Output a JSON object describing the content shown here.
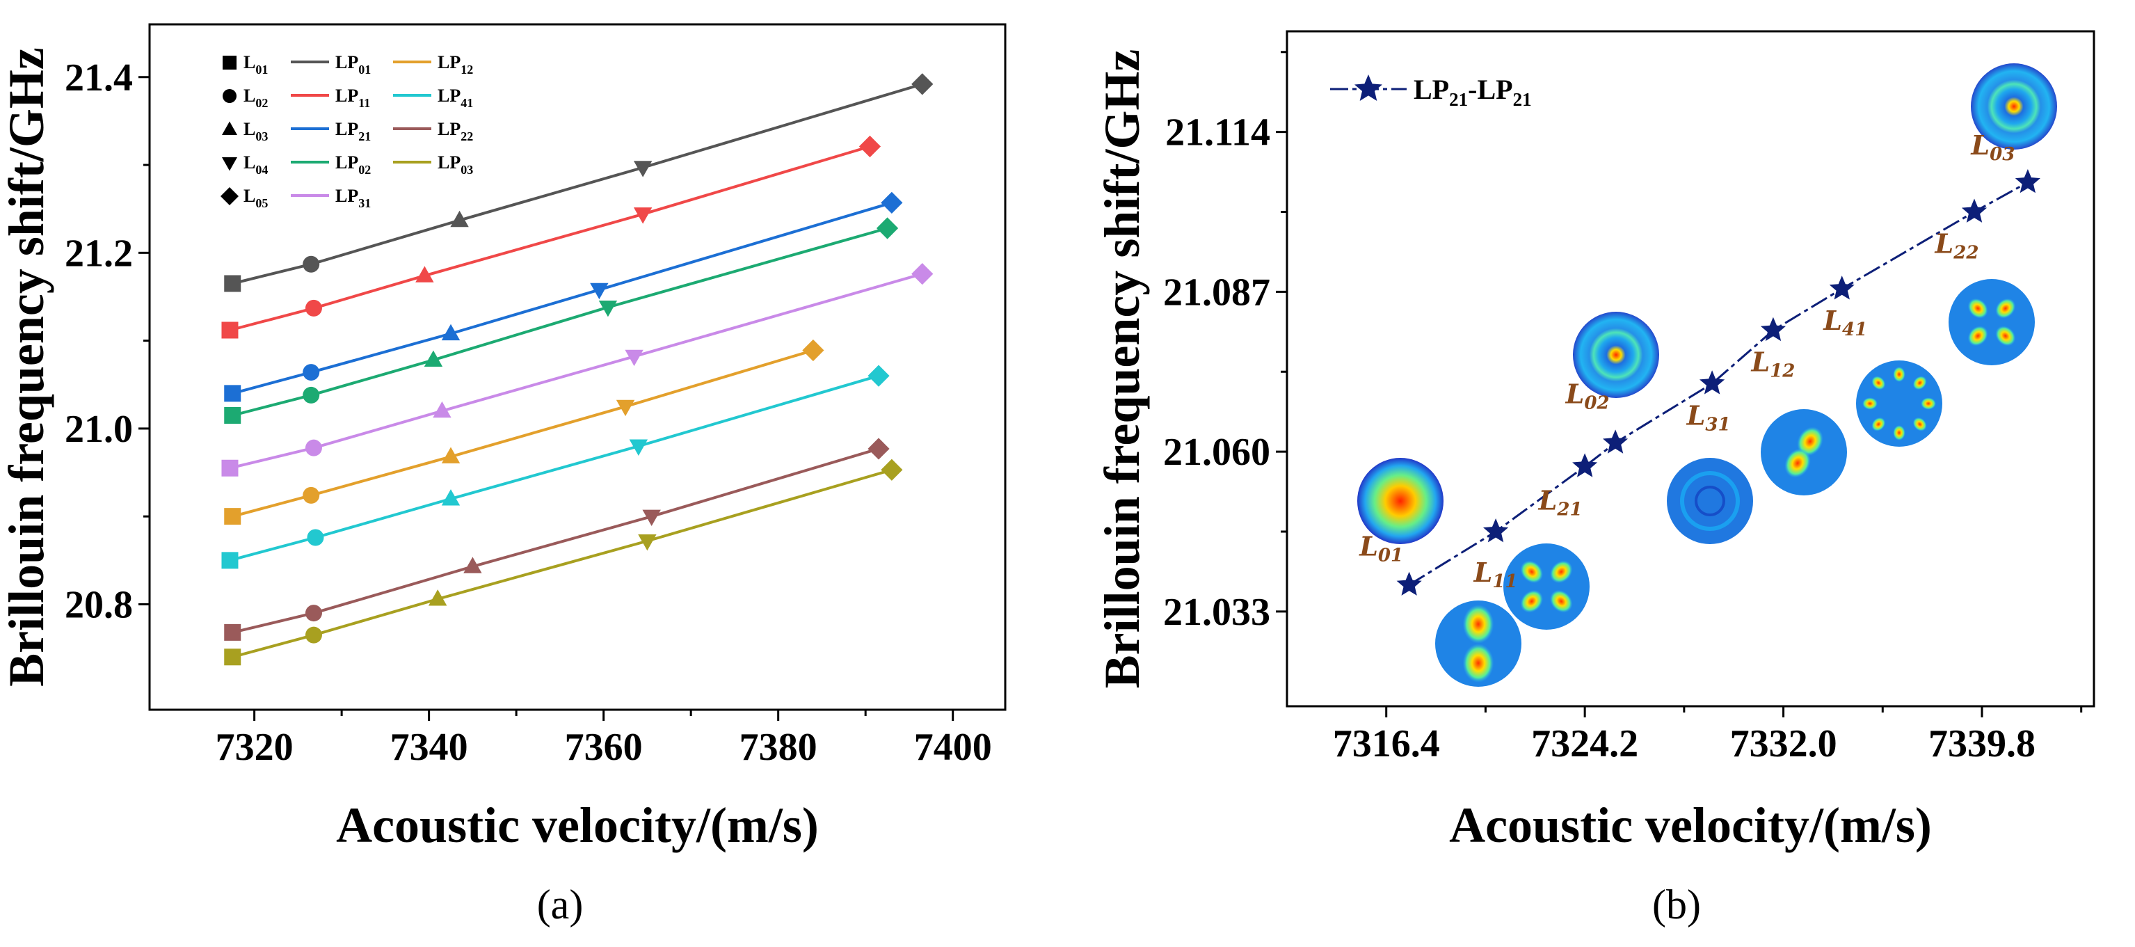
{
  "chart_data": [
    {
      "type": "line",
      "xlabel": "Acoustic velocity/(m/s)",
      "ylabel": "Brillouin frequency shift/GHz",
      "xlim": [
        7308,
        7406
      ],
      "ylim": [
        20.68,
        21.46
      ],
      "xticks": [
        7320,
        7340,
        7360,
        7380,
        7400
      ],
      "yticks": [
        20.8,
        21.0,
        21.2,
        21.4
      ],
      "xtick_labels": [
        "7320",
        "7340",
        "7360",
        "7380",
        "7400"
      ],
      "ytick_labels": [
        "20.8",
        "21.0",
        "21.2",
        "21.4"
      ],
      "panel_label": "(a)",
      "grid": false,
      "legend_placement": "top-left",
      "marker_legend": [
        {
          "base": "L",
          "sub": "01",
          "marker": "square"
        },
        {
          "base": "L",
          "sub": "02",
          "marker": "circle"
        },
        {
          "base": "L",
          "sub": "03",
          "marker": "triangle-up"
        },
        {
          "base": "L",
          "sub": "04",
          "marker": "triangle-down"
        },
        {
          "base": "L",
          "sub": "05",
          "marker": "diamond"
        }
      ],
      "series": [
        {
          "base": "LP",
          "sub": "01",
          "color": "#555555",
          "points": [
            [
              7317.5,
              21.165
            ],
            [
              7326.5,
              21.187
            ],
            [
              7343.5,
              21.237
            ],
            [
              7364.5,
              21.297
            ],
            [
              7396.5,
              21.392
            ]
          ]
        },
        {
          "base": "LP",
          "sub": "11",
          "color": "#f04848",
          "points": [
            [
              7317.2,
              21.112
            ],
            [
              7326.8,
              21.137
            ],
            [
              7339.5,
              21.174
            ],
            [
              7364.5,
              21.244
            ],
            [
              7390.5,
              21.321
            ]
          ]
        },
        {
          "base": "LP",
          "sub": "21",
          "color": "#1c6fd4",
          "points": [
            [
              7317.5,
              21.04
            ],
            [
              7326.5,
              21.064
            ],
            [
              7342.5,
              21.108
            ],
            [
              7359.5,
              21.158
            ],
            [
              7393.0,
              21.257
            ]
          ]
        },
        {
          "base": "LP",
          "sub": "02",
          "color": "#1caa72",
          "points": [
            [
              7317.5,
              21.015
            ],
            [
              7326.5,
              21.038
            ],
            [
              7340.5,
              21.078
            ],
            [
              7360.5,
              21.138
            ],
            [
              7392.5,
              21.228
            ]
          ]
        },
        {
          "base": "LP",
          "sub": "31",
          "color": "#c98ae8",
          "points": [
            [
              7317.2,
              20.955
            ],
            [
              7326.8,
              20.978
            ],
            [
              7341.5,
              21.02
            ],
            [
              7363.5,
              21.082
            ],
            [
              7396.5,
              21.176
            ]
          ]
        },
        {
          "base": "LP",
          "sub": "12",
          "color": "#e3a02c",
          "points": [
            [
              7317.5,
              20.9
            ],
            [
              7326.5,
              20.924
            ],
            [
              7342.5,
              20.968
            ],
            [
              7362.5,
              21.025
            ],
            [
              7384.0,
              21.089
            ]
          ]
        },
        {
          "base": "LP",
          "sub": "41",
          "color": "#22c8d0",
          "points": [
            [
              7317.2,
              20.85
            ],
            [
              7327.0,
              20.876
            ],
            [
              7342.5,
              20.92
            ],
            [
              7364.0,
              20.98
            ],
            [
              7391.5,
              21.06
            ]
          ]
        },
        {
          "base": "LP",
          "sub": "22",
          "color": "#9a5a5a",
          "points": [
            [
              7317.5,
              20.768
            ],
            [
              7326.8,
              20.79
            ],
            [
              7345.0,
              20.843
            ],
            [
              7365.5,
              20.9
            ],
            [
              7391.5,
              20.977
            ]
          ]
        },
        {
          "base": "LP",
          "sub": "03",
          "color": "#a8a020",
          "points": [
            [
              7317.5,
              20.74
            ],
            [
              7326.8,
              20.765
            ],
            [
              7341.0,
              20.806
            ],
            [
              7365.0,
              20.872
            ],
            [
              7393.0,
              20.953
            ]
          ]
        }
      ]
    },
    {
      "type": "line",
      "xlabel": "Acoustic velocity/(m/s)",
      "ylabel": "Brillouin frequency shift/GHz",
      "xlim": [
        7312.5,
        7344.2
      ],
      "ylim": [
        21.017,
        21.131
      ],
      "xticks": [
        7316.4,
        7324.2,
        7332.0,
        7339.8
      ],
      "yticks": [
        21.033,
        21.06,
        21.087,
        21.114
      ],
      "xtick_labels": [
        "7316.4",
        "7324.2",
        "7332.0",
        "7339.8"
      ],
      "ytick_labels": [
        "21.033",
        "21.060",
        "21.087",
        "21.114"
      ],
      "panel_label": "(b)",
      "grid": false,
      "legend_placement": "top-left",
      "color": "#0d1f78",
      "series": [
        {
          "base": "LP",
          "sub": "21",
          "sep": "-",
          "base2": "LP",
          "sub2": "21",
          "marker": "star"
        }
      ],
      "points": [
        {
          "base": "L",
          "sub": "01",
          "x": 7317.3,
          "y": 21.0375
        },
        {
          "base": "L",
          "sub": "11",
          "x": 7320.7,
          "y": 21.0465
        },
        {
          "base": "L",
          "sub": "21",
          "x": 7324.2,
          "y": 21.0575
        },
        {
          "base": "L",
          "sub": "02",
          "x": 7325.4,
          "y": 21.0615
        },
        {
          "base": "L",
          "sub": "31",
          "x": 7329.2,
          "y": 21.0715
        },
        {
          "base": "L",
          "sub": "12",
          "x": 7331.6,
          "y": 21.0805
        },
        {
          "base": "L",
          "sub": "41",
          "x": 7334.3,
          "y": 21.0875
        },
        {
          "base": "L",
          "sub": "22",
          "x": 7339.5,
          "y": 21.1005
        },
        {
          "base": "L",
          "sub": "03",
          "x": 7341.6,
          "y": 21.1055
        }
      ]
    }
  ]
}
